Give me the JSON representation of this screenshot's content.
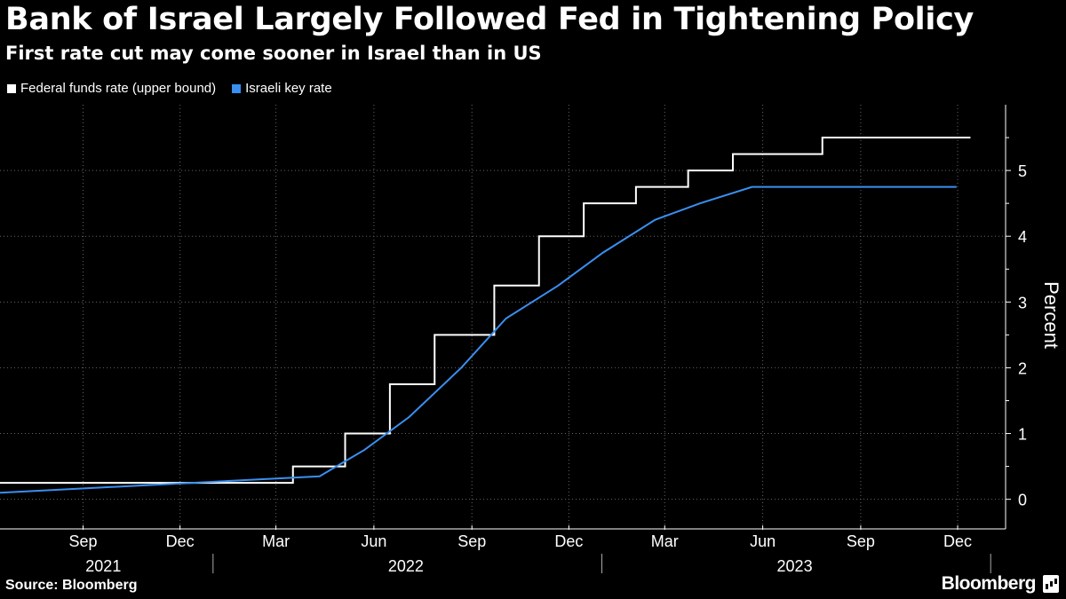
{
  "header": {
    "title": "Bank of Israel Largely Followed Fed in Tightening Policy",
    "subtitle": "First rate cut may come sooner in Israel than in US"
  },
  "footer": {
    "source": "Source: Bloomberg",
    "brand": "Bloomberg"
  },
  "colors": {
    "background": "#000000",
    "fed": "#ffffff",
    "israel": "#3a8ff0",
    "grid": "#666666"
  },
  "chart_data": {
    "type": "line",
    "title": "Bank of Israel Largely Followed Fed in Tightening Policy",
    "subtitle": "First rate cut may come sooner in Israel than in US",
    "ylabel": "Percent",
    "xlabel": "",
    "ylim": [
      -0.45,
      6.0
    ],
    "yticks": [
      0,
      1,
      2,
      3,
      4,
      5
    ],
    "xlim": [
      "2021-06-15",
      "2024-01-15"
    ],
    "x_ticks": [
      {
        "date": "2021-09-01",
        "label": "Sep"
      },
      {
        "date": "2021-12-01",
        "label": "Dec"
      },
      {
        "date": "2022-03-01",
        "label": "Mar"
      },
      {
        "date": "2022-06-01",
        "label": "Jun"
      },
      {
        "date": "2022-09-01",
        "label": "Sep"
      },
      {
        "date": "2022-12-01",
        "label": "Dec"
      },
      {
        "date": "2023-03-01",
        "label": "Mar"
      },
      {
        "date": "2023-06-01",
        "label": "Jun"
      },
      {
        "date": "2023-09-01",
        "label": "Sep"
      },
      {
        "date": "2023-12-01",
        "label": "Dec"
      }
    ],
    "year_labels": [
      {
        "label": "2021",
        "date": "2021-09-20"
      },
      {
        "label": "2022",
        "date": "2022-07-01"
      },
      {
        "label": "2023",
        "date": "2023-07-01"
      }
    ],
    "year_separators": [
      "2022-01-01",
      "2023-01-01",
      "2024-01-01"
    ],
    "grid": true,
    "legend_position": "top-left",
    "series": [
      {
        "name": "Federal funds rate (upper bound)",
        "color": "#ffffff",
        "step": true,
        "x": [
          "2021-06-15",
          "2022-03-17",
          "2022-05-05",
          "2022-06-16",
          "2022-07-28",
          "2022-09-22",
          "2022-11-03",
          "2022-12-15",
          "2023-02-02",
          "2023-03-23",
          "2023-05-04",
          "2023-07-27",
          "2023-12-13"
        ],
        "values": [
          0.25,
          0.5,
          1.0,
          1.75,
          2.5,
          3.25,
          4.0,
          4.5,
          4.75,
          5.0,
          5.25,
          5.5,
          5.5
        ]
      },
      {
        "name": "Israeli key rate",
        "color": "#3a8ff0",
        "step": false,
        "x": [
          "2021-06-15",
          "2022-04-11",
          "2022-05-23",
          "2022-07-04",
          "2022-08-22",
          "2022-10-03",
          "2022-11-21",
          "2023-01-02",
          "2023-02-20",
          "2023-04-03",
          "2023-05-22",
          "2023-11-30"
        ],
        "values": [
          0.1,
          0.35,
          0.75,
          1.25,
          2.0,
          2.75,
          3.25,
          3.75,
          4.25,
          4.5,
          4.75,
          4.75
        ]
      }
    ]
  }
}
